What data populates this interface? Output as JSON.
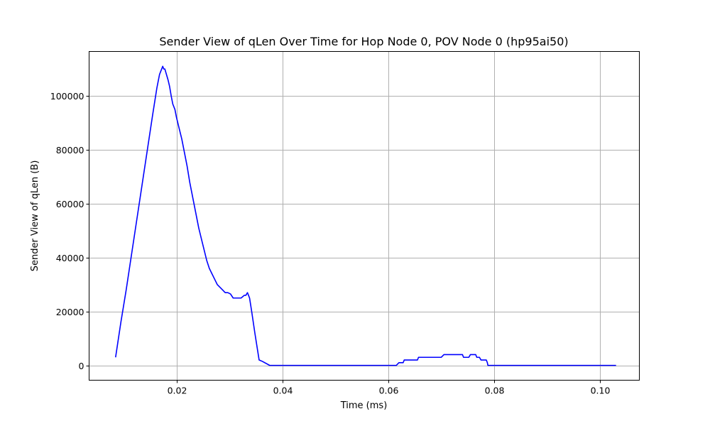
{
  "chart_data": {
    "type": "line",
    "title": "Sender View of qLen Over Time for Hop Node 0, POV Node 0 (hp95ai50)",
    "xlabel": "Time (ms)",
    "ylabel": "Sender View of qLen (B)",
    "xlim": [
      0.0035,
      0.1074
    ],
    "ylim": [
      -5500,
      116500
    ],
    "xticks": [
      0.02,
      0.04,
      0.06,
      0.08,
      0.1
    ],
    "xtick_labels": [
      "0.02",
      "0.04",
      "0.06",
      "0.08",
      "0.10"
    ],
    "yticks": [
      0,
      20000,
      40000,
      60000,
      80000,
      100000
    ],
    "ytick_labels": [
      "0",
      "20000",
      "40000",
      "60000",
      "80000",
      "100000"
    ],
    "grid": true,
    "color": "#0000ff",
    "series": [
      {
        "x": [
          0.0085,
          0.0095,
          0.0105,
          0.0115,
          0.0125,
          0.0135,
          0.0145,
          0.0155,
          0.0163,
          0.0168,
          0.0172,
          0.0174,
          0.0176,
          0.0178,
          0.0181,
          0.0184,
          0.0187,
          0.019,
          0.0193,
          0.0197,
          0.02,
          0.0205,
          0.021,
          0.0215,
          0.022,
          0.0225,
          0.023,
          0.0236,
          0.0242,
          0.0247,
          0.0252,
          0.0257,
          0.0262,
          0.0267,
          0.0272,
          0.0277,
          0.0282,
          0.0287,
          0.0292,
          0.0297,
          0.0302,
          0.0307,
          0.0312,
          0.0317,
          0.0322,
          0.0325,
          0.0328,
          0.0331,
          0.0334,
          0.0336,
          0.0338,
          0.0342,
          0.0348,
          0.0356,
          0.0362,
          0.0376,
          0.04,
          0.05,
          0.06,
          0.0615,
          0.062,
          0.0628,
          0.063,
          0.0645,
          0.0655,
          0.0657,
          0.07,
          0.0705,
          0.074,
          0.0742,
          0.0752,
          0.0755,
          0.0765,
          0.0767,
          0.0772,
          0.0775,
          0.078,
          0.0785,
          0.0787,
          0.0788,
          0.08,
          0.09,
          0.103
        ],
        "y": [
          3000,
          16000,
          28000,
          41000,
          54000,
          67000,
          80000,
          93000,
          103000,
          108000,
          110000,
          111000,
          110000,
          110000,
          108000,
          106000,
          103500,
          100000,
          97000,
          95000,
          92000,
          88000,
          84000,
          79000,
          74000,
          68000,
          63000,
          57000,
          51000,
          47000,
          43000,
          39000,
          36000,
          34000,
          32000,
          30000,
          29000,
          28000,
          27000,
          27000,
          26500,
          25000,
          25000,
          25000,
          25000,
          25500,
          26000,
          26000,
          27000,
          26000,
          25000,
          20000,
          12000,
          2000,
          1500,
          0,
          0,
          0,
          0,
          0,
          1000,
          1000,
          2000,
          2000,
          2000,
          3000,
          3000,
          4000,
          4000,
          3000,
          3000,
          4000,
          4000,
          3000,
          3000,
          2000,
          2000,
          2000,
          1000,
          0,
          0,
          0,
          0
        ]
      }
    ]
  }
}
